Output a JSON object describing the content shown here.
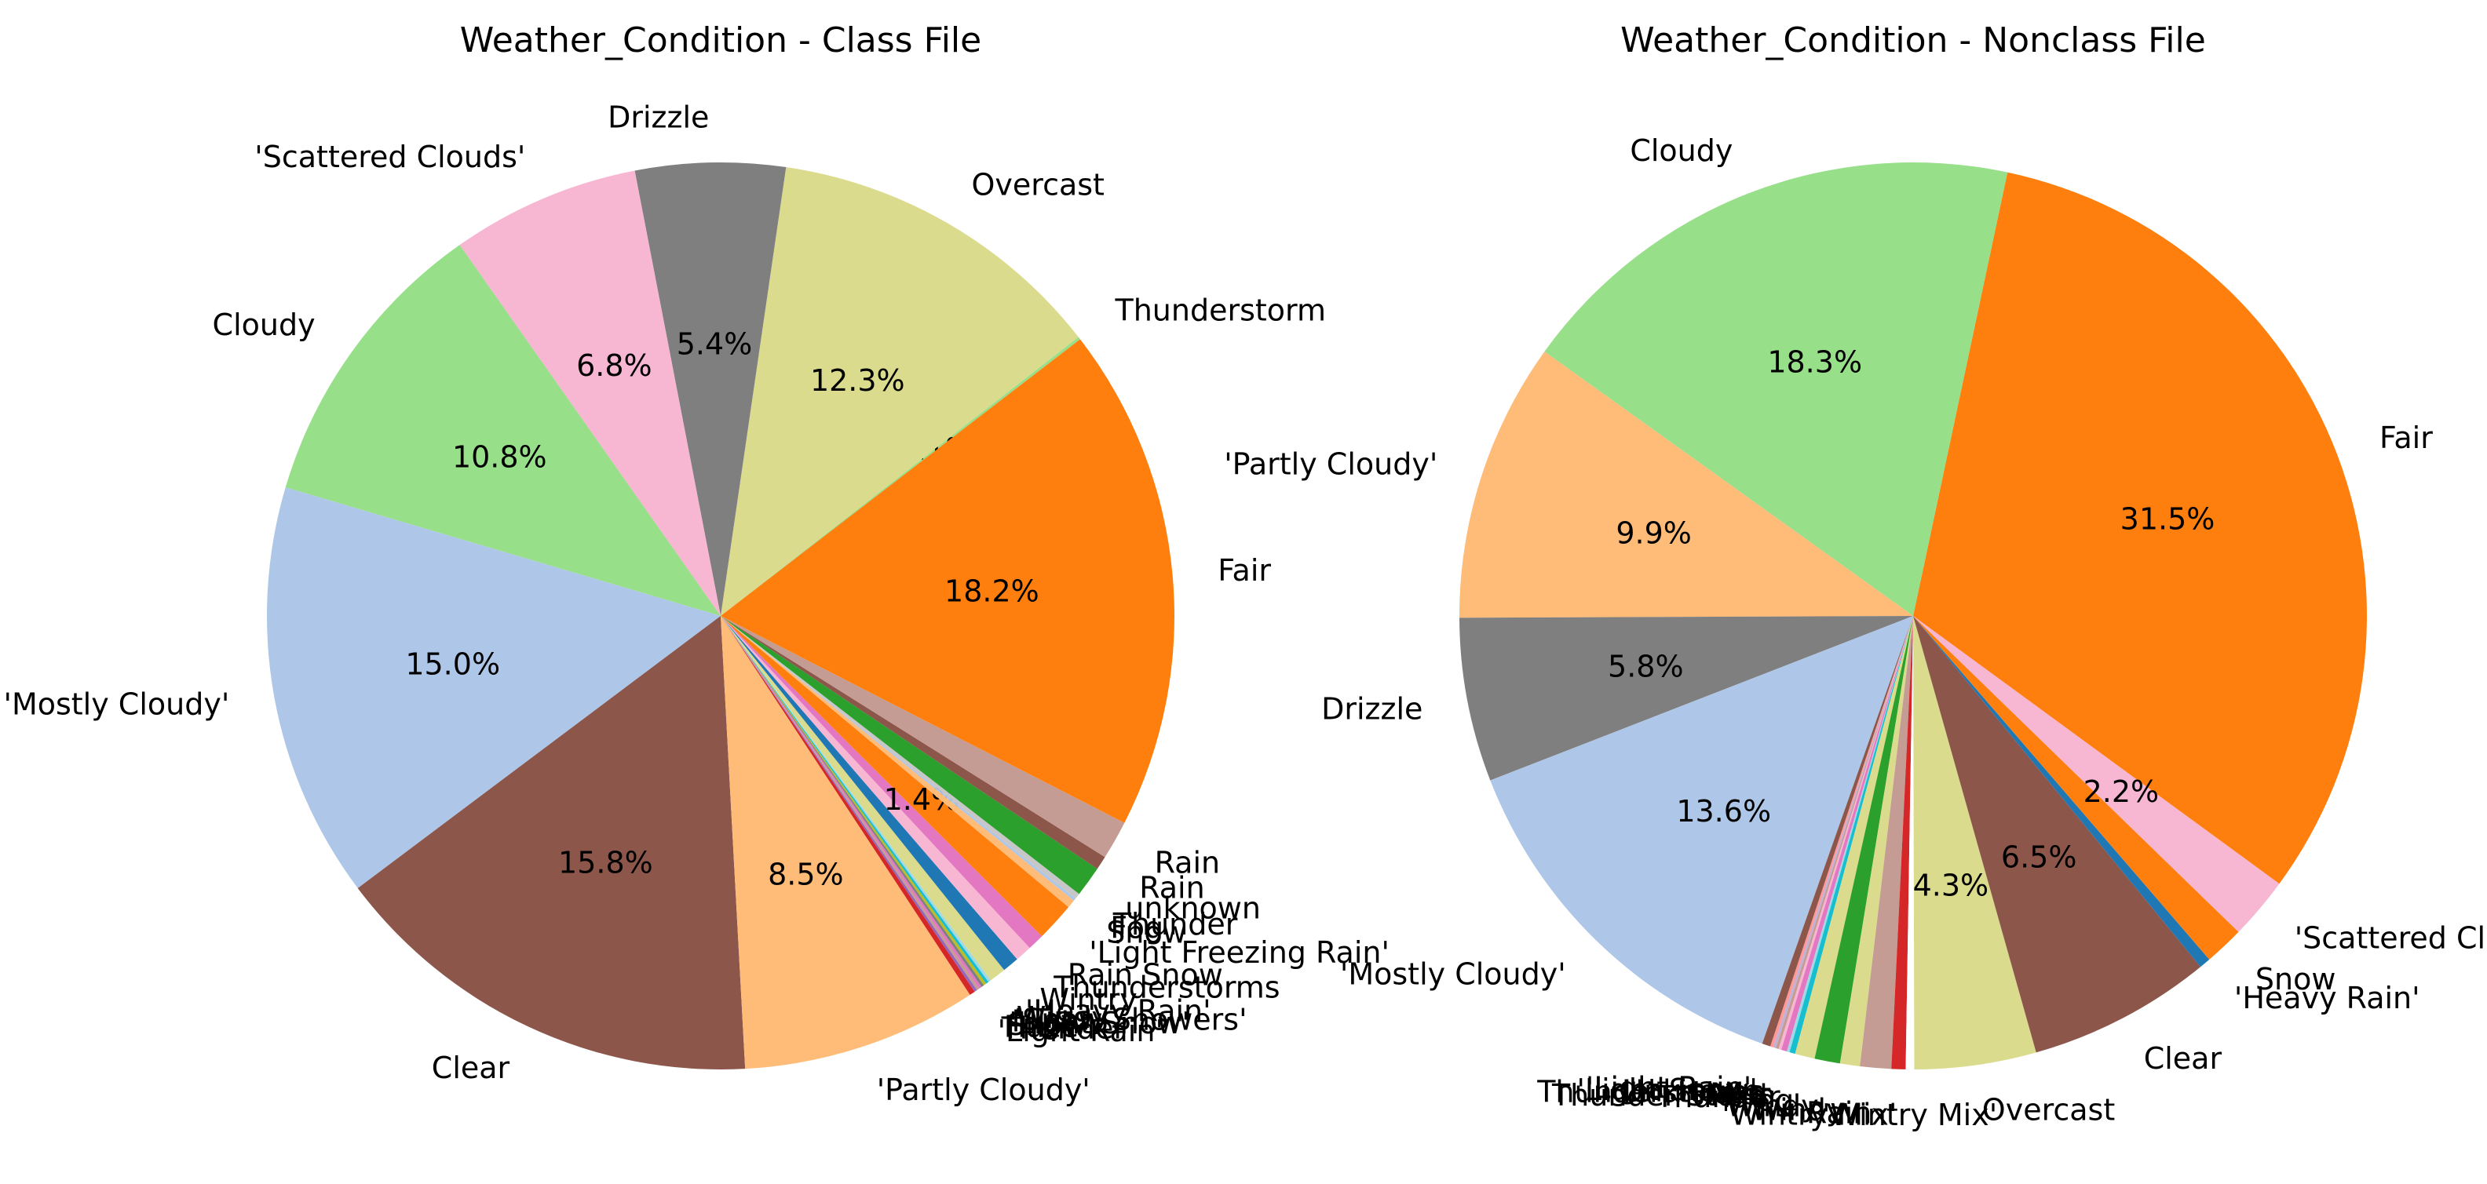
{
  "chart_data": [
    {
      "type": "pie",
      "title": "Weather_Condition - Class File",
      "slices": [
        {
          "label": "Thunderstorm",
          "value": 0.1,
          "color": "#98df8a"
        },
        {
          "label": "Overcast",
          "value": 12.3,
          "color": "#dbdb8d"
        },
        {
          "label": "Drizzle",
          "value": 5.4,
          "color": "#7f7f7f"
        },
        {
          "label": "'Scattered Clouds'",
          "value": 6.8,
          "color": "#f7b6d2"
        },
        {
          "label": "Cloudy",
          "value": 10.8,
          "color": "#98df8a"
        },
        {
          "label": "'Mostly Cloudy'",
          "value": 15.0,
          "color": "#aec7e8"
        },
        {
          "label": "Clear",
          "value": 15.8,
          "color": "#8c564b"
        },
        {
          "label": "'Partly Cloudy'",
          "value": 8.5,
          "color": "#ffbb78"
        },
        {
          "label": "'Light Rain'",
          "value": 0.2,
          "color": "#d62728"
        },
        {
          "label": "Thunder",
          "value": 0.1,
          "color": "#9467bd"
        },
        {
          "label": "Haze",
          "value": 0.1,
          "color": "#c49c94"
        },
        {
          "label": "Snow",
          "value": 0.1,
          "color": "#e377c2"
        },
        {
          "label": "'Light Snow'",
          "value": 0.1,
          "color": "#7f7f7f"
        },
        {
          "label": "Mist",
          "value": 0.1,
          "color": "#bcbd22"
        },
        {
          "label": "'Snow Showers'",
          "value": 0.1,
          "color": "#17becf"
        },
        {
          "label": "Windy",
          "value": 0.1,
          "color": "#9edae5"
        },
        {
          "label": "'Heavy Rain'",
          "value": 0.6,
          "color": "#dbdb8d"
        },
        {
          "label": "Wintry",
          "value": 0.6,
          "color": "#1f77b4"
        },
        {
          "label": "Thunderstorms",
          "value": 0.6,
          "color": "#f7b6d2"
        },
        {
          "label": "Rain Snow",
          "value": 0.6,
          "color": "#e377c2"
        },
        {
          "label": "'Light Freezing Rain'",
          "value": 1.4,
          "color": "#ff7f0e"
        },
        {
          "label": "Snow",
          "value": 0.3,
          "color": "#ffbb78"
        },
        {
          "label": "Fog",
          "value": 0.1,
          "color": "#aec7e8"
        },
        {
          "label": "Thunder",
          "value": 0.2,
          "color": "#c7c7c7"
        },
        {
          "label": "unknown",
          "value": 1.1,
          "color": "#2ca02c"
        },
        {
          "label": "Rain",
          "value": 0.5,
          "color": "#8c564b"
        },
        {
          "label": "Rain",
          "value": 1.4,
          "color": "#c49c94"
        },
        {
          "label": "Fair",
          "value": 18.2,
          "color": "#ff7f0e"
        }
      ],
      "visible_pct_labels": [
        "18.2%",
        "0.1%",
        "12.3%",
        "5.4%",
        "6.8%",
        "10.8%",
        "15.0%",
        "15.8%",
        "8.5%",
        "1.4%"
      ]
    },
    {
      "type": "pie",
      "title": "Weather_Condition - Nonclass File",
      "slices": [
        {
          "label": "Fair",
          "value": 31.5,
          "color": "#ff7f0e"
        },
        {
          "label": "Cloudy",
          "value": 18.3,
          "color": "#98df8a"
        },
        {
          "label": "'Partly Cloudy'",
          "value": 9.9,
          "color": "#ffbb78"
        },
        {
          "label": "Drizzle",
          "value": 5.8,
          "color": "#7f7f7f"
        },
        {
          "label": "'Mostly Cloudy'",
          "value": 13.6,
          "color": "#aec7e8"
        },
        {
          "label": "'Light Rain'",
          "value": 0.3,
          "color": "#8c564b"
        },
        {
          "label": "'Light Snow'",
          "value": 0.1,
          "color": "#ff9896"
        },
        {
          "label": "Unknown",
          "value": 0.1,
          "color": "#c5b0d5"
        },
        {
          "label": "Thunderstorms",
          "value": 0.1,
          "color": "#c49c94"
        },
        {
          "label": "Haze",
          "value": 0.1,
          "color": "#f7b6d2"
        },
        {
          "label": "Mist",
          "value": 0.2,
          "color": "#e377c2"
        },
        {
          "label": "Thunder Storm",
          "value": 0.1,
          "color": "#9edae5"
        },
        {
          "label": "Thunder",
          "value": 0.2,
          "color": "#17becf"
        },
        {
          "label": "Fog",
          "value": 0.7,
          "color": "#dbdb8d"
        },
        {
          "label": "Windy",
          "value": 0.9,
          "color": "#2ca02c"
        },
        {
          "label": "Windy",
          "value": 0.7,
          "color": "#dbdb8d"
        },
        {
          "label": "Rain",
          "value": 1.1,
          "color": "#c49c94"
        },
        {
          "label": "'Wintry Mix'",
          "value": 0.5,
          "color": "#d62728"
        },
        {
          "label": "'Wintry Mix'",
          "value": 0.3,
          "color": "#ffffff"
        },
        {
          "label": "Overcast",
          "value": 4.3,
          "color": "#dbdb8d"
        },
        {
          "label": "Clear",
          "value": 6.5,
          "color": "#8c564b"
        },
        {
          "label": "'Heavy Rain'",
          "value": 0.4,
          "color": "#1f77b4"
        },
        {
          "label": "Snow",
          "value": 1.4,
          "color": "#ff7f0e"
        },
        {
          "label": "'Scattered Clouds'",
          "value": 2.2,
          "color": "#f7b6d2"
        }
      ],
      "visible_pct_labels": [
        "31.5%",
        "18.3%",
        "9.9%",
        "5.8%",
        "13.6%",
        "4.3%",
        "6.5%",
        "2.2%"
      ]
    }
  ]
}
